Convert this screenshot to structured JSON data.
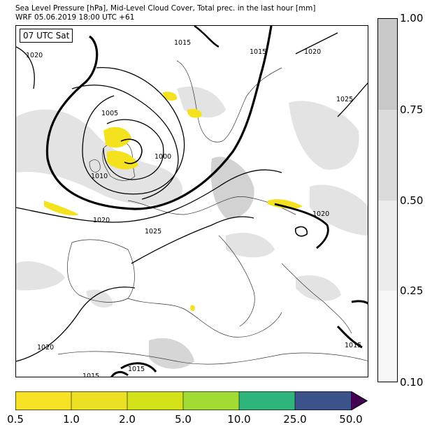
{
  "title_line1": "Sea Level Pressure [hPa], Mid-Level Cloud Cover, Total prec. in the last hour [mm]",
  "title_line2": "WRF 05.06.2019 18:00 UTC +61",
  "valid_time": "07 UTC Sat",
  "isobar_labels": [
    "1020",
    "1015",
    "1020",
    "1025",
    "1015",
    "1005",
    "1000",
    "1010",
    "1020",
    "1025",
    "1020",
    "1020",
    "1015",
    "1015",
    "1015"
  ],
  "cloud_colorbar": {
    "ticks": [
      "1.00",
      "0.75",
      "0.50",
      "0.25",
      "0.10"
    ],
    "colors": [
      "#c8c8c8",
      "#dbdbdb",
      "#ebebeb",
      "#f7f7f7"
    ]
  },
  "precip_colorbar": {
    "ticks": [
      "0.5",
      "1.0",
      "2.0",
      "5.0",
      "10.0",
      "25.0",
      "50.0"
    ],
    "colors": [
      "#f7e225",
      "#ece024",
      "#d4e21a",
      "#a3db35",
      "#2fb47c",
      "#3b528b",
      "#440154"
    ]
  },
  "colors": {
    "land": "#ffffff",
    "cloud_light": "#e6e6e6",
    "cloud_dark": "#cccccc",
    "precip": "#f5e21f",
    "isobar": "#000000"
  }
}
